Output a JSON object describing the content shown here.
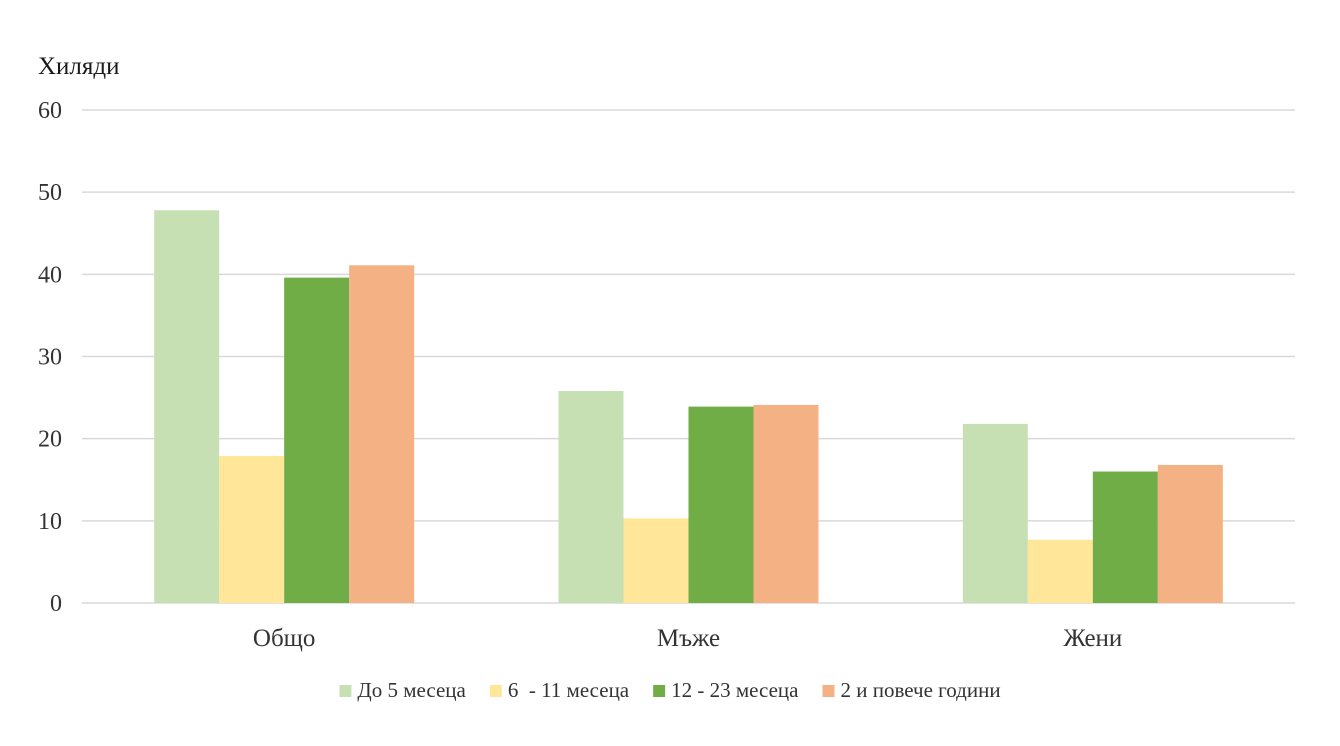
{
  "chart_data": {
    "type": "bar",
    "ylabel": "Хиляди",
    "categories": [
      "Общо",
      "Мъже",
      "Жени"
    ],
    "series": [
      {
        "name": "До 5 месеца",
        "color": "#c6e0b4",
        "values": [
          47.8,
          25.8,
          21.8
        ]
      },
      {
        "name": "6  - 11 месеца",
        "color": "#ffe699",
        "values": [
          17.9,
          10.3,
          7.7
        ]
      },
      {
        "name": "12 - 23 месеца",
        "color": "#70ad47",
        "values": [
          39.6,
          23.9,
          16.0
        ]
      },
      {
        "name": "2 и повече години",
        "color": "#f4b183",
        "values": [
          41.1,
          24.1,
          16.8
        ]
      }
    ],
    "ylim": [
      0,
      60
    ],
    "yticks": [
      0,
      10,
      20,
      30,
      40,
      50,
      60
    ],
    "grid": true,
    "legend": "bottom"
  }
}
